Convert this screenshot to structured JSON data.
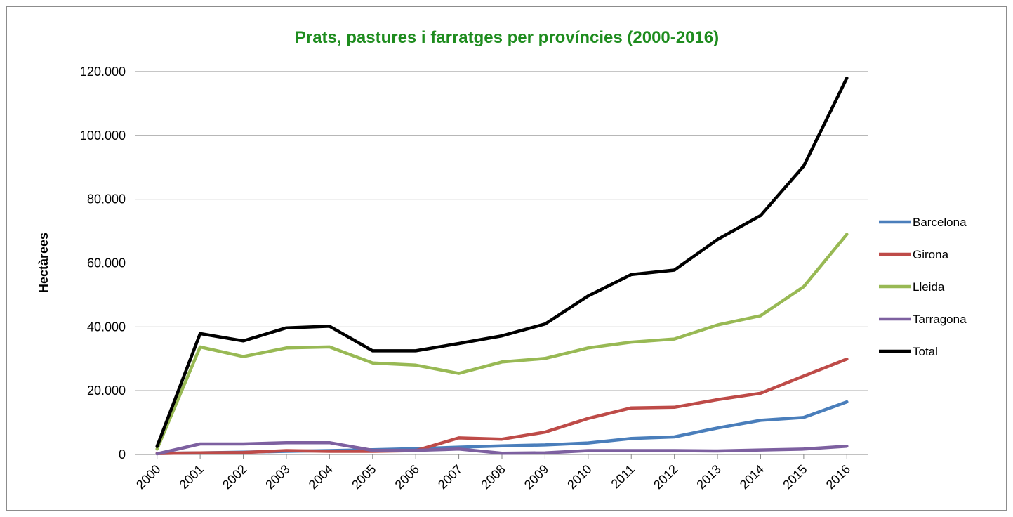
{
  "chart_data": {
    "type": "line",
    "title": "Prats, pastures i farratges per províncies (2000-2016)",
    "title_color": "#1e8c1e",
    "xlabel": "",
    "ylabel": "Hectàrees",
    "ylim": [
      0,
      120000
    ],
    "yticks": [
      0,
      20000,
      40000,
      60000,
      80000,
      100000,
      120000
    ],
    "ytick_labels": [
      "0",
      "20.000",
      "40.000",
      "60.000",
      "80.000",
      "100.000",
      "120.000"
    ],
    "grid": true,
    "legend_position": "right",
    "categories": [
      "2000",
      "2001",
      "2002",
      "2003",
      "2004",
      "2005",
      "2006",
      "2007",
      "2008",
      "2009",
      "2010",
      "2011",
      "2012",
      "2013",
      "2014",
      "2015",
      "2016"
    ],
    "series": [
      {
        "name": "Barcelona",
        "color": "#4a7ebb",
        "values": [
          300,
          500,
          700,
          1000,
          1200,
          1500,
          1800,
          2300,
          2700,
          3000,
          3600,
          5000,
          5500,
          8300,
          10700,
          11600,
          16500
        ]
      },
      {
        "name": "Girona",
        "color": "#be4b48",
        "values": [
          300,
          500,
          600,
          1200,
          1000,
          1000,
          1200,
          5200,
          4800,
          7000,
          11300,
          14600,
          14800,
          17200,
          19200,
          24600,
          29900
        ]
      },
      {
        "name": "Lleida",
        "color": "#98b954",
        "values": [
          1700,
          33700,
          30700,
          33400,
          33700,
          28700,
          28000,
          25400,
          29000,
          30100,
          33400,
          35200,
          36200,
          40600,
          43500,
          52600,
          69000
        ]
      },
      {
        "name": "Tarragona",
        "color": "#7d60a0",
        "values": [
          200,
          3300,
          3300,
          3700,
          3700,
          1300,
          1300,
          1700,
          400,
          500,
          1200,
          1200,
          1200,
          1100,
          1400,
          1700,
          2600
        ]
      },
      {
        "name": "Total",
        "color": "#000000",
        "values": [
          2500,
          37900,
          35600,
          39700,
          40200,
          32500,
          32500,
          34800,
          37200,
          40900,
          49700,
          56400,
          57800,
          67400,
          74900,
          90400,
          118000
        ]
      }
    ]
  }
}
